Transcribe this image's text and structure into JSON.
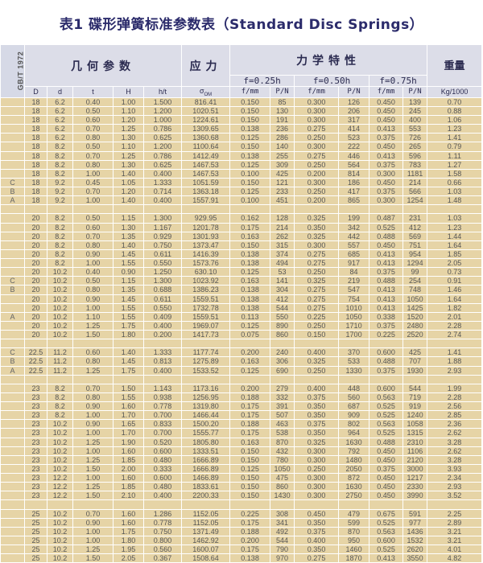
{
  "title": "表1  碟形弹簧标准参数表（Standard Disc Springs）",
  "header": {
    "standard": "GB/T 1972",
    "geometry": "几何参数",
    "stress": "应力",
    "mechanical": "力学特性",
    "weight": "重量",
    "f025": "f=0.25h",
    "f050": "f=0.50h",
    "f075": "f=0.75h",
    "columns": [
      "D",
      "d",
      "t",
      "H",
      "h/t",
      "σ",
      "f/mm",
      "P/N",
      "f/mm",
      "P/N",
      "f/mm",
      "P/N",
      "Kg/1000"
    ],
    "stress_sub": "OM"
  },
  "colors": {
    "title": "#2b2b6b",
    "header_bg": "#dcdde8",
    "row_bg": "#e6d4a6",
    "grid": "#ffffff"
  },
  "groups": [
    [
      [
        "",
        "18",
        "6.2",
        "0.40",
        "1.00",
        "1.500",
        "816.41",
        "0.150",
        "85",
        "0.300",
        "126",
        "0.450",
        "139",
        "0.70"
      ],
      [
        "",
        "18",
        "6.2",
        "0.50",
        "1.10",
        "1.200",
        "1020.51",
        "0.150",
        "130",
        "0.300",
        "206",
        "0.450",
        "245",
        "0.88"
      ],
      [
        "",
        "18",
        "6.2",
        "0.60",
        "1.20",
        "1.000",
        "1224.61",
        "0.150",
        "191",
        "0.300",
        "317",
        "0.450",
        "400",
        "1.06"
      ],
      [
        "",
        "18",
        "6.2",
        "0.70",
        "1.25",
        "0.786",
        "1309.65",
        "0.138",
        "236",
        "0.275",
        "414",
        "0.413",
        "553",
        "1.23"
      ],
      [
        "",
        "18",
        "6.2",
        "0.80",
        "1.30",
        "0.625",
        "1360.68",
        "0.125",
        "286",
        "0.250",
        "523",
        "0.375",
        "726",
        "1.41"
      ],
      [
        "",
        "18",
        "8.2",
        "0.50",
        "1.10",
        "1.200",
        "1100.64",
        "0.150",
        "140",
        "0.300",
        "222",
        "0.450",
        "265",
        "0.79"
      ],
      [
        "",
        "18",
        "8.2",
        "0.70",
        "1.25",
        "0.786",
        "1412.49",
        "0.138",
        "255",
        "0.275",
        "446",
        "0.413",
        "596",
        "1.11"
      ],
      [
        "",
        "18",
        "8.2",
        "0.80",
        "1.30",
        "0.625",
        "1467.53",
        "0.125",
        "309",
        "0.250",
        "564",
        "0.375",
        "783",
        "1.27"
      ],
      [
        "",
        "18",
        "8.2",
        "1.00",
        "1.40",
        "0.400",
        "1467.53",
        "0.100",
        "425",
        "0.200",
        "814",
        "0.300",
        "1181",
        "1.58"
      ],
      [
        "C",
        "18",
        "9.2",
        "0.45",
        "1.05",
        "1.333",
        "1051.59",
        "0.150",
        "121",
        "0.300",
        "186",
        "0.450",
        "214",
        "0.66"
      ],
      [
        "B",
        "18",
        "9.2",
        "0.70",
        "1.20",
        "0.714",
        "1363.18",
        "0.125",
        "233",
        "0.250",
        "417",
        "0.375",
        "566",
        "1.03"
      ],
      [
        "A",
        "18",
        "9.2",
        "1.00",
        "1.40",
        "0.400",
        "1557.91",
        "0.100",
        "451",
        "0.200",
        "865",
        "0.300",
        "1254",
        "1.48"
      ]
    ],
    [
      [
        "",
        "20",
        "8.2",
        "0.50",
        "1.15",
        "1.300",
        "929.95",
        "0.162",
        "128",
        "0.325",
        "199",
        "0.487",
        "231",
        "1.03"
      ],
      [
        "",
        "20",
        "8.2",
        "0.60",
        "1.30",
        "1.167",
        "1201.78",
        "0.175",
        "214",
        "0.350",
        "342",
        "0.525",
        "412",
        "1.23"
      ],
      [
        "",
        "20",
        "8.2",
        "0.70",
        "1.35",
        "0.929",
        "1301.93",
        "0.163",
        "262",
        "0.325",
        "442",
        "0.488",
        "569",
        "1.44"
      ],
      [
        "",
        "20",
        "8.2",
        "0.80",
        "1.40",
        "0.750",
        "1373.47",
        "0.150",
        "315",
        "0.300",
        "557",
        "0.450",
        "751",
        "1.64"
      ],
      [
        "",
        "20",
        "8.2",
        "0.90",
        "1.45",
        "0.611",
        "1416.39",
        "0.138",
        "374",
        "0.275",
        "685",
        "0.413",
        "954",
        "1.85"
      ],
      [
        "",
        "20",
        "8.2",
        "1.00",
        "1.55",
        "0.550",
        "1573.76",
        "0.138",
        "494",
        "0.275",
        "917",
        "0.413",
        "1294",
        "2.05"
      ],
      [
        "",
        "20",
        "10.2",
        "0.40",
        "0.90",
        "1.250",
        "630.10",
        "0.125",
        "53",
        "0.250",
        "84",
        "0.375",
        "99",
        "0.73"
      ],
      [
        "C",
        "20",
        "10.2",
        "0.50",
        "1.15",
        "1.300",
        "1023.92",
        "0.163",
        "141",
        "0.325",
        "219",
        "0.488",
        "254",
        "0.91"
      ],
      [
        "B",
        "20",
        "10.2",
        "0.80",
        "1.35",
        "0.688",
        "1386.23",
        "0.138",
        "304",
        "0.275",
        "547",
        "0.413",
        "748",
        "1.46"
      ],
      [
        "",
        "20",
        "10.2",
        "0.90",
        "1.45",
        "0.611",
        "1559.51",
        "0.138",
        "412",
        "0.275",
        "754",
        "0.413",
        "1050",
        "1.64"
      ],
      [
        "",
        "20",
        "10.2",
        "1.00",
        "1.55",
        "0.550",
        "1732.78",
        "0.138",
        "544",
        "0.275",
        "1010",
        "0.413",
        "1425",
        "1.82"
      ],
      [
        "A",
        "20",
        "10.2",
        "1.10",
        "1.55",
        "0.409",
        "1559.51",
        "0.113",
        "550",
        "0.225",
        "1050",
        "0.338",
        "1520",
        "2.01"
      ],
      [
        "",
        "20",
        "10.2",
        "1.25",
        "1.75",
        "0.400",
        "1969.07",
        "0.125",
        "890",
        "0.250",
        "1710",
        "0.375",
        "2480",
        "2.28"
      ],
      [
        "",
        "20",
        "10.2",
        "1.50",
        "1.80",
        "0.200",
        "1417.73",
        "0.075",
        "860",
        "0.150",
        "1700",
        "0.225",
        "2520",
        "2.74"
      ]
    ],
    [
      [
        "C",
        "22.5",
        "11.2",
        "0.60",
        "1.40",
        "1.333",
        "1177.74",
        "0.200",
        "240",
        "0.400",
        "370",
        "0.600",
        "425",
        "1.41"
      ],
      [
        "B",
        "22.5",
        "11.2",
        "0.80",
        "1.45",
        "0.813",
        "1275.89",
        "0.163",
        "306",
        "0.325",
        "533",
        "0.488",
        "707",
        "1.88"
      ],
      [
        "A",
        "22.5",
        "11.2",
        "1.25",
        "1.75",
        "0.400",
        "1533.52",
        "0.125",
        "690",
        "0.250",
        "1330",
        "0.375",
        "1930",
        "2.93"
      ]
    ],
    [
      [
        "",
        "23",
        "8.2",
        "0.70",
        "1.50",
        "1.143",
        "1173.16",
        "0.200",
        "279",
        "0.400",
        "448",
        "0.600",
        "544",
        "1.99"
      ],
      [
        "",
        "23",
        "8.2",
        "0.80",
        "1.55",
        "0.938",
        "1256.95",
        "0.188",
        "332",
        "0.375",
        "560",
        "0.563",
        "719",
        "2.28"
      ],
      [
        "",
        "23",
        "8.2",
        "0.90",
        "1.60",
        "0.778",
        "1319.80",
        "0.175",
        "391",
        "0.350",
        "687",
        "0.525",
        "919",
        "2.56"
      ],
      [
        "",
        "23",
        "8.2",
        "1.00",
        "1.70",
        "0.700",
        "1466.44",
        "0.175",
        "507",
        "0.350",
        "909",
        "0.525",
        "1240",
        "2.85"
      ],
      [
        "",
        "23",
        "10.2",
        "0.90",
        "1.65",
        "0.833",
        "1500.20",
        "0.188",
        "463",
        "0.375",
        "802",
        "0.563",
        "1058",
        "2.36"
      ],
      [
        "",
        "23",
        "10.2",
        "1.00",
        "1.70",
        "0.700",
        "1555.77",
        "0.175",
        "538",
        "0.350",
        "964",
        "0.525",
        "1315",
        "2.62"
      ],
      [
        "",
        "23",
        "10.2",
        "1.25",
        "1.90",
        "0.520",
        "1805.80",
        "0.163",
        "870",
        "0.325",
        "1630",
        "0.488",
        "2310",
        "3.28"
      ],
      [
        "",
        "23",
        "10.2",
        "1.00",
        "1.60",
        "0.600",
        "1333.51",
        "0.150",
        "432",
        "0.300",
        "792",
        "0.450",
        "1106",
        "2.62"
      ],
      [
        "",
        "23",
        "10.2",
        "1.25",
        "1.85",
        "0.480",
        "1666.89",
        "0.150",
        "780",
        "0.300",
        "1480",
        "0.450",
        "2120",
        "3.28"
      ],
      [
        "",
        "23",
        "10.2",
        "1.50",
        "2.00",
        "0.333",
        "1666.89",
        "0.125",
        "1050",
        "0.250",
        "2050",
        "0.375",
        "3000",
        "3.93"
      ],
      [
        "",
        "23",
        "12.2",
        "1.00",
        "1.60",
        "0.600",
        "1466.89",
        "0.150",
        "475",
        "0.300",
        "872",
        "0.450",
        "1217",
        "2.34"
      ],
      [
        "",
        "23",
        "12.2",
        "1.25",
        "1.85",
        "0.480",
        "1833.61",
        "0.150",
        "860",
        "0.300",
        "1630",
        "0.450",
        "2330",
        "2.93"
      ],
      [
        "",
        "23",
        "12.2",
        "1.50",
        "2.10",
        "0.400",
        "2200.33",
        "0.150",
        "1430",
        "0.300",
        "2750",
        "0.450",
        "3990",
        "3.52"
      ]
    ],
    [
      [
        "",
        "25",
        "10.2",
        "0.70",
        "1.60",
        "1.286",
        "1152.05",
        "0.225",
        "308",
        "0.450",
        "479",
        "0.675",
        "591",
        "2.25"
      ],
      [
        "",
        "25",
        "10.2",
        "0.90",
        "1.60",
        "0.778",
        "1152.05",
        "0.175",
        "341",
        "0.350",
        "599",
        "0.525",
        "977",
        "2.89"
      ],
      [
        "",
        "25",
        "10.2",
        "1.00",
        "1.75",
        "0.750",
        "1371.49",
        "0.188",
        "492",
        "0.375",
        "870",
        "0.563",
        "1436",
        "3.21"
      ],
      [
        "",
        "25",
        "10.2",
        "1.00",
        "1.80",
        "0.800",
        "1462.92",
        "0.200",
        "544",
        "0.400",
        "950",
        "0.600",
        "1532",
        "3.21"
      ],
      [
        "",
        "25",
        "10.2",
        "1.25",
        "1.95",
        "0.560",
        "1600.07",
        "0.175",
        "790",
        "0.350",
        "1460",
        "0.525",
        "2620",
        "4.01"
      ],
      [
        "",
        "25",
        "10.2",
        "1.50",
        "2.05",
        "0.367",
        "1508.64",
        "0.138",
        "970",
        "0.275",
        "1870",
        "0.413",
        "3550",
        "4.82"
      ]
    ]
  ]
}
